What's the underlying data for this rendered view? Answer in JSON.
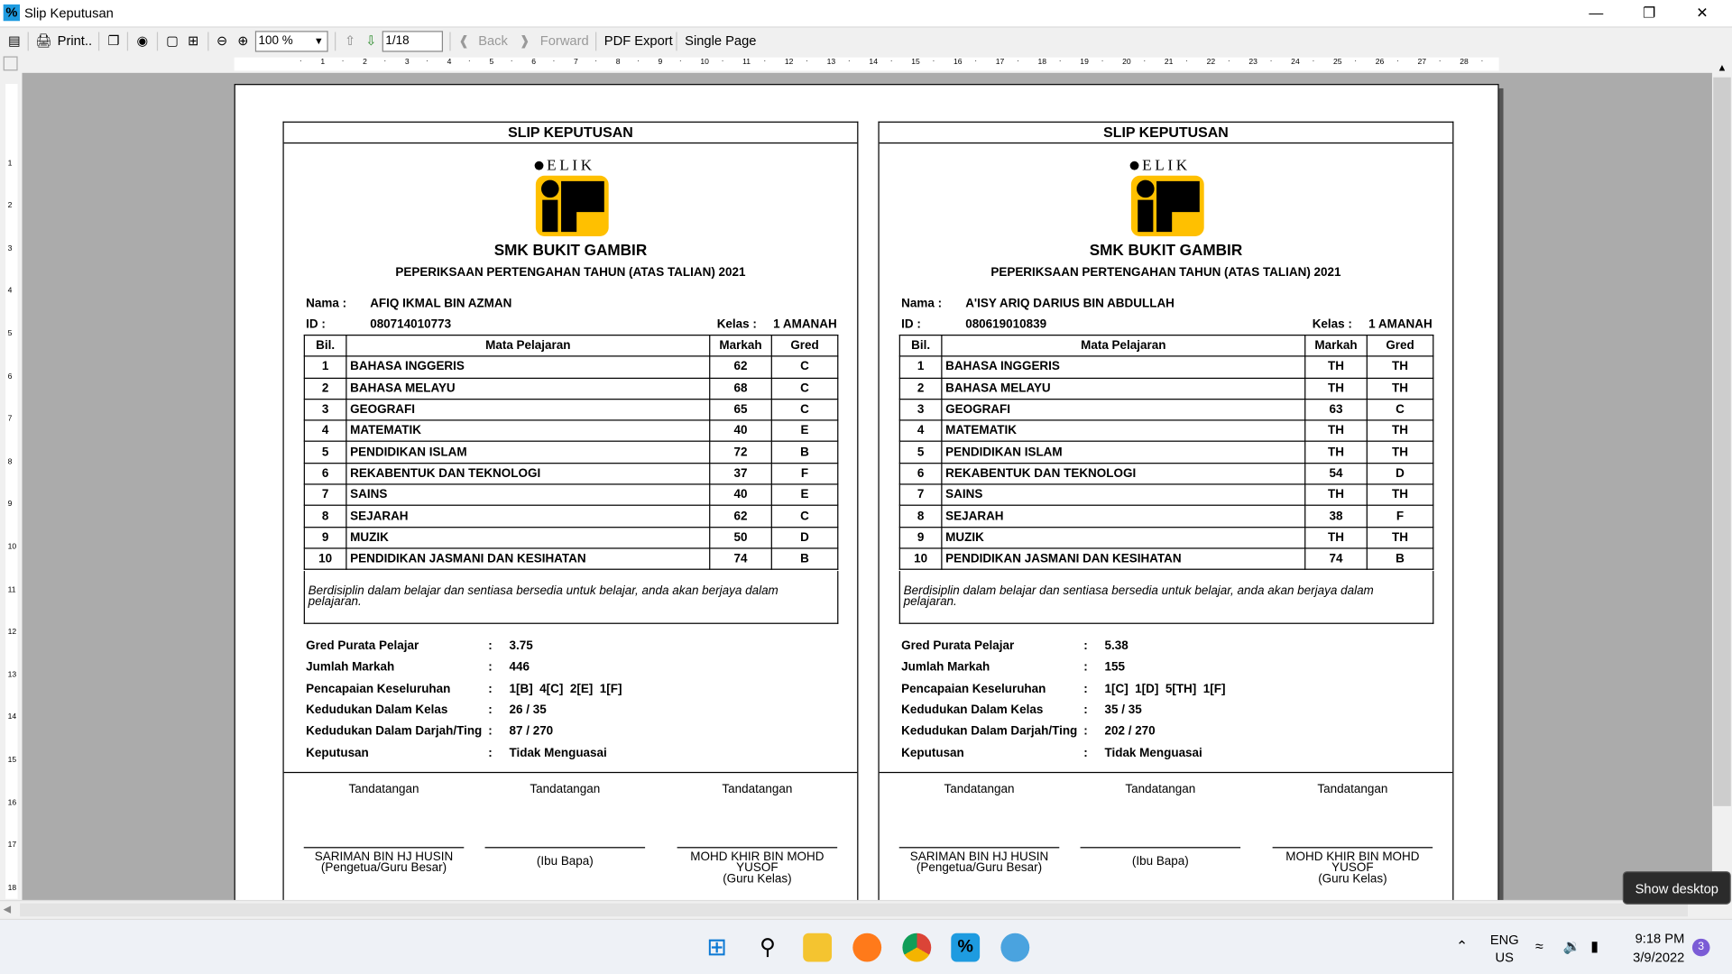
{
  "window": {
    "title": "Slip Keputusan",
    "app_icon": "%"
  },
  "toolbar": {
    "print": "Print..",
    "zoom": "100 %",
    "page": "1/18",
    "back": "Back",
    "forward": "Forward",
    "pdf_export": "PDF Export",
    "single_page": "Single Page"
  },
  "slip_common": {
    "header": "SLIP KEPUTUSAN",
    "logo_text": "ELIK",
    "school": "SMK BUKIT GAMBIR",
    "exam": "PEPERIKSAAN PERTENGAHAN TAHUN (ATAS TALIAN) 2021",
    "nama_label": "Nama :",
    "id_label": "ID :",
    "kelas_label": "Kelas :",
    "cols": [
      "Bil.",
      "Mata Pelajaran",
      "Markah",
      "Gred"
    ],
    "summary_labels": [
      "Gred Purata Pelajar",
      "Jumlah Markah",
      "Pencapaian Keseluruhan",
      "Kedudukan Dalam Kelas",
      "Kedudukan Dalam Darjah/Ting",
      "Keputusan"
    ],
    "sign": "Tandatangan",
    "signers": [
      {
        "name": "SARIMAN BIN HJ HUSIN",
        "role": "(Pengetua/Guru Besar)"
      },
      {
        "name": "",
        "role": "(Ibu Bapa)"
      },
      {
        "name": "MOHD KHIR BIN MOHD YUSOF",
        "role": "(Guru Kelas)"
      }
    ]
  },
  "slips": [
    {
      "nama": "AFIQ IKMAL BIN AZMAN",
      "id": "080714010773",
      "kelas": "1 AMANAH",
      "subjects": [
        [
          "1",
          "BAHASA INGGERIS",
          "62",
          "C"
        ],
        [
          "2",
          "BAHASA MELAYU",
          "68",
          "C"
        ],
        [
          "3",
          "GEOGRAFI",
          "65",
          "C"
        ],
        [
          "4",
          "MATEMATIK",
          "40",
          "E"
        ],
        [
          "5",
          "PENDIDIKAN ISLAM",
          "72",
          "B"
        ],
        [
          "6",
          "REKABENTUK DAN TEKNOLOGI",
          "37",
          "F"
        ],
        [
          "7",
          "SAINS",
          "40",
          "E"
        ],
        [
          "8",
          "SEJARAH",
          "62",
          "C"
        ],
        [
          "9",
          "MUZIK",
          "50",
          "D"
        ],
        [
          "10",
          "PENDIDIKAN JASMANI DAN KESIHATAN",
          "74",
          "B"
        ]
      ],
      "comment": "Berdisiplin dalam belajar dan sentiasa bersedia untuk belajar, anda akan berjaya dalam pelajaran.",
      "summary": [
        "3.75",
        "446",
        "1[B]  4[C]  2[E]  1[F]",
        "26 / 35",
        "87 / 270",
        "Tidak Menguasai"
      ]
    },
    {
      "nama": "A'ISY ARIQ DARIUS BIN ABDULLAH",
      "id": "080619010839",
      "kelas": "1 AMANAH",
      "subjects": [
        [
          "1",
          "BAHASA INGGERIS",
          "TH",
          "TH"
        ],
        [
          "2",
          "BAHASA MELAYU",
          "TH",
          "TH"
        ],
        [
          "3",
          "GEOGRAFI",
          "63",
          "C"
        ],
        [
          "4",
          "MATEMATIK",
          "TH",
          "TH"
        ],
        [
          "5",
          "PENDIDIKAN ISLAM",
          "TH",
          "TH"
        ],
        [
          "6",
          "REKABENTUK DAN TEKNOLOGI",
          "54",
          "D"
        ],
        [
          "7",
          "SAINS",
          "TH",
          "TH"
        ],
        [
          "8",
          "SEJARAH",
          "38",
          "F"
        ],
        [
          "9",
          "MUZIK",
          "TH",
          "TH"
        ],
        [
          "10",
          "PENDIDIKAN JASMANI DAN KESIHATAN",
          "74",
          "B"
        ]
      ],
      "comment": "Berdisiplin dalam belajar dan sentiasa bersedia untuk belajar, anda akan berjaya dalam pelajaran.",
      "summary": [
        "5.38",
        "155",
        "1[C]  1[D]  5[TH]  1[F]",
        "35 / 35",
        "202 / 270",
        "Tidak Menguasai"
      ]
    }
  ],
  "taskbar": {
    "lang1": "ENG",
    "lang2": "US",
    "time": "9:18 PM",
    "date": "3/9/2022",
    "badge": "3",
    "tooltip": "Show desktop"
  },
  "colors": {
    "logo_yellow": "#ffc000",
    "viewport": "#ababab",
    "app_icon": "#1e9be0"
  }
}
